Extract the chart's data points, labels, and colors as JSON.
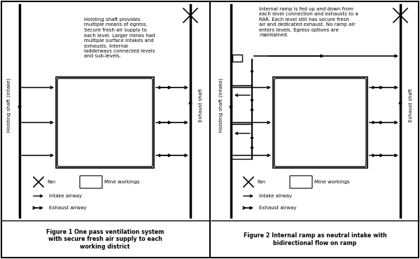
{
  "bg_color": "#f0f0ec",
  "fig1_caption": "Figure 1 One pass ventilation system\nwith secure fresh air supply to each\nworking district",
  "fig2_caption": "Figure 2 Internal ramp as neutral intake with\nbidirectional flow on ramp",
  "fig1_text": "Hoisting shaft provides\nmultiple means of egress.\nSecure fresh air supply to\neach level. Larger mines had\nmultiple surface intakes and\nexhausts. Internal\nladderways connected levels\nand sub-levels.",
  "fig2_text": "Internal ramp is fed up and down from\neach level connection and exhausts to a\nRAR. Each level still has secure fresh\nair and dedicated exhaust. No ramp air\nenters levels. Egress options are\nmaintained.",
  "label_hoisting": "Hoisting shaft (intake)",
  "label_exhaust": "Exhaust shaft",
  "legend_fan": "Fan",
  "legend_mine": "Mine workings",
  "legend_intake": "Intake airway",
  "legend_exhaust": "Exhaust airway"
}
